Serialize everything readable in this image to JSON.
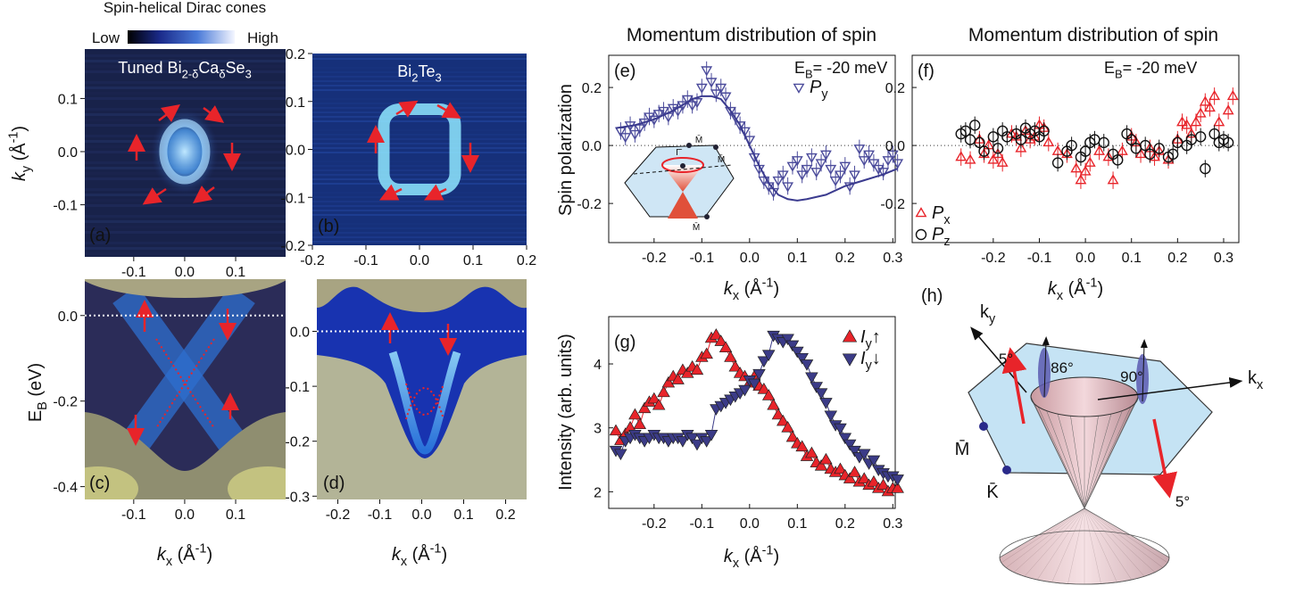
{
  "header": {
    "title": "Spin-helical Dirac cones",
    "low": "Low",
    "high": "High"
  },
  "chart_data": [
    {
      "type": "image",
      "label": "(a)",
      "annotation": [
        "Tuned Bi",
        {
          "text": "2-δ",
          "shift": "sub"
        },
        "Ca",
        {
          "text": "δ",
          "shift": "sub"
        },
        "Se",
        {
          "text": "3",
          "shift": "sub"
        }
      ],
      "ylabel": [
        {
          "text": "k",
          "italic": true
        },
        {
          "text": "y",
          "shift": "sub"
        },
        " (Å",
        {
          "text": "-1",
          "shift": "sup"
        },
        ")"
      ],
      "xlim": [
        -0.196,
        0.198
      ],
      "ylim": [
        -0.198,
        0.193
      ],
      "xticks": [
        -0.1,
        {
          "value": 0,
          "label": "0.0"
        },
        0.1
      ],
      "yticks": [
        0.1,
        {
          "value": 0,
          "label": "0.0"
        },
        -0.1
      ]
    },
    {
      "type": "image",
      "label": "(b)",
      "annotation": [
        "Bi",
        {
          "text": "2",
          "shift": "sub"
        },
        "Te",
        {
          "text": "3",
          "shift": "sub"
        }
      ],
      "xlim": [
        -0.2,
        0.2
      ],
      "ylim": [
        -0.2,
        0.2
      ],
      "xticks": [
        -0.2,
        -0.1,
        {
          "value": 0,
          "label": "0.0"
        },
        0.1,
        0.2
      ],
      "yticks": [
        0.2,
        0.1,
        {
          "value": 0,
          "label": "0.0"
        },
        -0.1,
        -0.2
      ]
    },
    {
      "type": "image",
      "label": "(c)",
      "ylabel": [
        "E",
        {
          "text": "B",
          "shift": "sub"
        },
        " (eV)"
      ],
      "xlabel": [
        {
          "text": "k",
          "italic": true
        },
        {
          "text": "x",
          "shift": "sub"
        },
        " (Å",
        {
          "text": "-1",
          "shift": "sup"
        },
        ")"
      ],
      "xlim": [
        -0.196,
        0.198
      ],
      "ylim": [
        -0.43,
        0.085
      ],
      "ref_line": 0,
      "xticks": [
        -0.1,
        {
          "value": 0,
          "label": "0.0"
        },
        0.1
      ],
      "yticks": [
        {
          "value": 0,
          "label": "0.0"
        },
        -0.2,
        -0.4
      ]
    },
    {
      "type": "image",
      "label": "(d)",
      "xlabel": [
        {
          "text": "k",
          "italic": true
        },
        {
          "text": "x",
          "shift": "sub"
        },
        " (Å",
        {
          "text": "-1",
          "shift": "sup"
        },
        ")"
      ],
      "xlim": [
        -0.25,
        0.25
      ],
      "ylim": [
        -0.306,
        0.095
      ],
      "ref_line": 0,
      "xticks": [
        -0.2,
        -0.1,
        {
          "value": 0,
          "label": "0.0"
        },
        0.1,
        0.2
      ],
      "yticks": [
        {
          "value": 0,
          "label": "0.0"
        },
        -0.1,
        -0.2,
        -0.3
      ]
    },
    {
      "type": "scatter",
      "label": "(e)",
      "title": "Momentum distribution of spin",
      "annotation": [
        "E",
        {
          "text": "B",
          "shift": "sub"
        },
        "= -20 meV"
      ],
      "ylabel": [
        "Spin polarization"
      ],
      "xlabel": [
        {
          "text": "k",
          "italic": true
        },
        {
          "text": "x",
          "shift": "sub"
        },
        " (Å",
        {
          "text": "-1",
          "shift": "sup"
        },
        ")"
      ],
      "xlim": [
        -0.295,
        0.305
      ],
      "ylim": [
        -0.335,
        0.311
      ],
      "ref_line": 0,
      "legend": "upper right",
      "xticks": [
        -0.2,
        -0.1,
        {
          "value": 0,
          "label": "0.0"
        },
        0.1,
        0.2,
        0.3
      ],
      "yticks": [
        0.2,
        {
          "value": 0,
          "label": "0.0"
        },
        -0.2
      ],
      "inset_labels": [
        "Γ̄",
        "M̄",
        "M̄",
        "M̄"
      ],
      "series": [
        {
          "name": [
            {
              "text": "P",
              "italic": true
            },
            {
              "text": "y",
              "shift": "sub"
            }
          ],
          "color": "#4b4b9b",
          "marker": "triangle-down",
          "filled": false,
          "error": 0.03,
          "x": [
            -0.27,
            -0.26,
            -0.25,
            -0.24,
            -0.23,
            -0.22,
            -0.21,
            -0.2,
            -0.19,
            -0.18,
            -0.17,
            -0.16,
            -0.15,
            -0.14,
            -0.13,
            -0.12,
            -0.11,
            -0.1,
            -0.09,
            -0.08,
            -0.07,
            -0.06,
            -0.05,
            -0.04,
            -0.03,
            -0.02,
            -0.01,
            0,
            0.01,
            0.02,
            0.03,
            0.04,
            0.05,
            0.06,
            0.07,
            0.08,
            0.09,
            0.1,
            0.11,
            0.12,
            0.13,
            0.14,
            0.15,
            0.16,
            0.17,
            0.18,
            0.19,
            0.2,
            0.21,
            0.22,
            0.23,
            0.24,
            0.25,
            0.26,
            0.27,
            0.28,
            0.29,
            0.3,
            0.31
          ],
          "values": [
            0.05,
            0.03,
            0.07,
            0.04,
            0.06,
            0.08,
            0.1,
            0.09,
            0.11,
            0.12,
            0.1,
            0.13,
            0.12,
            0.14,
            0.16,
            0.14,
            0.15,
            0.2,
            0.26,
            0.22,
            0.18,
            0.2,
            0.17,
            0.12,
            0.1,
            0.07,
            0.05,
            0.02,
            -0.04,
            -0.08,
            -0.12,
            -0.14,
            -0.16,
            -0.12,
            -0.1,
            -0.14,
            -0.07,
            -0.05,
            -0.1,
            -0.08,
            -0.04,
            -0.09,
            -0.06,
            -0.03,
            -0.08,
            -0.12,
            -0.1,
            -0.07,
            -0.14,
            -0.1,
            -0.01,
            -0.05,
            -0.03,
            -0.06,
            -0.08,
            -0.09,
            -0.05,
            -0.03,
            -0.06
          ]
        },
        {
          "style": "line",
          "color": "#3b3b8f",
          "x": [
            -0.28,
            -0.24,
            -0.2,
            -0.16,
            -0.12,
            -0.1,
            -0.08,
            -0.06,
            -0.04,
            -0.02,
            0,
            0.02,
            0.04,
            0.06,
            0.08,
            0.1,
            0.12,
            0.16,
            0.2,
            0.24,
            0.28,
            0.31
          ],
          "values": [
            0.06,
            0.07,
            0.09,
            0.12,
            0.16,
            0.17,
            0.17,
            0.16,
            0.12,
            0.07,
            0,
            -0.07,
            -0.13,
            -0.17,
            -0.185,
            -0.19,
            -0.185,
            -0.17,
            -0.14,
            -0.12,
            -0.1,
            -0.08
          ]
        }
      ]
    },
    {
      "type": "scatter",
      "label": "(f)",
      "title": "Momentum distribution of spin",
      "annotation": [
        "E",
        {
          "text": "B",
          "shift": "sub"
        },
        "= -20 meV"
      ],
      "xlabel": [
        {
          "text": "k",
          "italic": true
        },
        {
          "text": "x",
          "shift": "sub"
        },
        " (Å",
        {
          "text": "-1",
          "shift": "sup"
        },
        ")"
      ],
      "xlim": [
        -0.376,
        0.333
      ],
      "ylim": [
        -0.335,
        0.311
      ],
      "ref_line": 0,
      "legend": "lower left",
      "xticks": [
        -0.2,
        -0.1,
        {
          "value": 0,
          "label": "0.0"
        },
        0.1,
        0.2,
        0.3
      ],
      "yticks": [
        0.2,
        {
          "value": 0,
          "label": "0.0"
        },
        -0.2
      ],
      "series": [
        {
          "name": [
            {
              "text": "P",
              "italic": true
            },
            {
              "text": "x",
              "shift": "sub"
            }
          ],
          "color": "#e8242a",
          "marker": "triangle-up",
          "filled": false,
          "error": 0.03,
          "x": [
            -0.27,
            -0.25,
            -0.23,
            -0.22,
            -0.21,
            -0.2,
            -0.19,
            -0.18,
            -0.16,
            -0.15,
            -0.14,
            -0.13,
            -0.12,
            -0.11,
            -0.1,
            -0.09,
            -0.08,
            -0.06,
            -0.04,
            -0.02,
            -0.01,
            0,
            0.01,
            0.03,
            0.05,
            0.06,
            0.08,
            0.1,
            0.11,
            0.12,
            0.14,
            0.15,
            0.16,
            0.18,
            0.2,
            0.21,
            0.22,
            0.23,
            0.24,
            0.25,
            0.26,
            0.27,
            0.28,
            0.29,
            0.31,
            0.32
          ],
          "values": [
            -0.04,
            -0.05,
            0.02,
            -0.03,
            0,
            -0.05,
            -0.03,
            -0.06,
            0.04,
            0.03,
            -0.01,
            0.05,
            0.02,
            0.03,
            0.07,
            0.06,
            0.01,
            -0.02,
            -0.03,
            -0.08,
            -0.12,
            -0.09,
            -0.06,
            -0.02,
            -0.04,
            -0.12,
            -0.02,
            0.03,
            0.01,
            -0.03,
            -0.01,
            -0.04,
            -0.02,
            -0.05,
            0.02,
            0.08,
            0.07,
            0.04,
            0.08,
            0.11,
            0.15,
            0.13,
            0.17,
            0.08,
            0.12,
            0.17
          ]
        },
        {
          "name": [
            {
              "text": "P",
              "italic": true
            },
            {
              "text": "z",
              "shift": "sub"
            }
          ],
          "color": "#111111",
          "marker": "circle",
          "filled": false,
          "error": 0.03,
          "x": [
            -0.27,
            -0.26,
            -0.25,
            -0.24,
            -0.23,
            -0.22,
            -0.2,
            -0.19,
            -0.18,
            -0.17,
            -0.15,
            -0.14,
            -0.13,
            -0.12,
            -0.11,
            -0.1,
            -0.09,
            -0.06,
            -0.04,
            -0.03,
            -0.01,
            0,
            0.01,
            0.02,
            0.04,
            0.06,
            0.07,
            0.09,
            0.1,
            0.11,
            0.13,
            0.14,
            0.16,
            0.18,
            0.19,
            0.2,
            0.22,
            0.23,
            0.25,
            0.26,
            0.28,
            0.29,
            0.3,
            0.31
          ],
          "values": [
            0.04,
            0.05,
            0.02,
            0.07,
            0.01,
            -0.02,
            0.03,
            -0.01,
            0.05,
            0.03,
            0.04,
            0.02,
            0.06,
            0.04,
            0.05,
            0.03,
            0.05,
            -0.06,
            -0.02,
            0,
            -0.04,
            -0.02,
            0.01,
            0.02,
            0.01,
            -0.03,
            -0.05,
            0.04,
            0.02,
            -0.01,
            0,
            -0.03,
            -0.01,
            -0.04,
            -0.03,
            0.01,
            0,
            0.02,
            0.03,
            -0.08,
            0.04,
            0.01,
            0.02,
            0.01
          ]
        }
      ]
    },
    {
      "type": "scatter",
      "label": "(g)",
      "ylabel": [
        "Intensity (arb. units)"
      ],
      "xlabel": [
        {
          "text": "k",
          "italic": true
        },
        {
          "text": "x",
          "shift": "sub"
        },
        " (Å",
        {
          "text": "-1",
          "shift": "sup"
        },
        ")"
      ],
      "xlim": [
        -0.295,
        0.305
      ],
      "ylim": [
        1.74,
        4.74
      ],
      "legend": "upper right",
      "xticks": [
        -0.2,
        -0.1,
        {
          "value": 0,
          "label": "0.0"
        },
        0.1,
        0.2,
        0.3
      ],
      "yticks": [
        4,
        3,
        2
      ],
      "x": [
        -0.28,
        -0.27,
        -0.26,
        -0.25,
        -0.24,
        -0.23,
        -0.22,
        -0.21,
        -0.2,
        -0.19,
        -0.18,
        -0.17,
        -0.16,
        -0.15,
        -0.14,
        -0.13,
        -0.12,
        -0.11,
        -0.1,
        -0.09,
        -0.08,
        -0.07,
        -0.06,
        -0.05,
        -0.04,
        -0.03,
        -0.02,
        -0.01,
        0,
        0.01,
        0.02,
        0.03,
        0.04,
        0.05,
        0.06,
        0.07,
        0.08,
        0.09,
        0.1,
        0.11,
        0.12,
        0.13,
        0.14,
        0.15,
        0.16,
        0.17,
        0.18,
        0.19,
        0.2,
        0.21,
        0.22,
        0.23,
        0.24,
        0.25,
        0.26,
        0.27,
        0.28,
        0.29,
        0.3,
        0.31
      ],
      "series": [
        {
          "name": [
            {
              "text": "I",
              "italic": true
            },
            {
              "text": "y",
              "shift": "sub"
            },
            "↑"
          ],
          "color": "#e8242a",
          "marker": "triangle-up",
          "filled": true,
          "connect": true,
          "values": [
            2.95,
            2.8,
            2.9,
            3.0,
            3.2,
            3.05,
            3.3,
            3.4,
            3.45,
            3.35,
            3.55,
            3.7,
            3.8,
            3.75,
            3.9,
            3.85,
            3.95,
            3.9,
            4.1,
            4.15,
            4.4,
            4.45,
            4.35,
            4.25,
            4.1,
            3.95,
            3.85,
            3.8,
            3.7,
            3.8,
            3.65,
            3.6,
            3.5,
            3.35,
            3.2,
            3.1,
            3.0,
            2.85,
            2.75,
            2.7,
            2.55,
            2.6,
            2.45,
            2.4,
            2.5,
            2.35,
            2.3,
            2.35,
            2.25,
            2.2,
            2.3,
            2.15,
            2.2,
            2.1,
            2.15,
            2.05,
            2.1,
            2.0,
            2.05,
            2.05
          ]
        },
        {
          "name": [
            {
              "text": "I",
              "italic": true
            },
            {
              "text": "y",
              "shift": "sub"
            },
            "↓"
          ],
          "color": "#3b3b87",
          "marker": "triangle-down",
          "filled": true,
          "connect": true,
          "values": [
            2.65,
            2.6,
            2.8,
            2.85,
            2.9,
            2.85,
            2.8,
            2.85,
            2.9,
            2.85,
            2.85,
            2.8,
            2.85,
            2.85,
            2.8,
            2.9,
            2.85,
            2.75,
            2.85,
            2.8,
            2.9,
            3.3,
            3.35,
            3.4,
            3.45,
            3.5,
            3.55,
            3.6,
            3.75,
            3.7,
            3.85,
            4.05,
            4.15,
            4.45,
            4.4,
            4.35,
            4.4,
            4.3,
            4.2,
            4.1,
            4.0,
            3.8,
            3.65,
            3.55,
            3.4,
            3.2,
            3.05,
            3.0,
            2.85,
            2.75,
            2.65,
            2.55,
            2.6,
            2.45,
            2.5,
            2.35,
            2.3,
            2.25,
            2.25,
            2.2
          ]
        }
      ]
    }
  ],
  "diagram": {
    "label": "(h)",
    "ky": [
      "k",
      {
        "text": "y",
        "shift": "sub"
      }
    ],
    "kx": [
      "k",
      {
        "text": "x",
        "shift": "sub"
      }
    ],
    "m": "M̄",
    "k": "K̄",
    "angles": [
      "5°",
      "86°",
      "90°",
      "5°"
    ]
  }
}
